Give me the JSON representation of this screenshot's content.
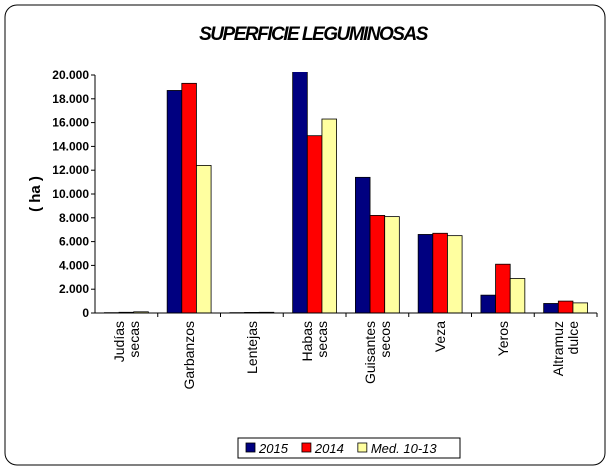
{
  "chart_data": {
    "type": "bar",
    "title": "SUPERFICIE LEGUMINOSAS",
    "y_label": "( ha )",
    "categories": [
      [
        "Judías",
        "secas"
      ],
      [
        "Garbanzos"
      ],
      [
        "Lentejas"
      ],
      [
        "Habas",
        "secas"
      ],
      [
        "Guisantes",
        "secos"
      ],
      [
        "Veza"
      ],
      [
        "Yeros"
      ],
      [
        "Altramuz",
        "dulce"
      ]
    ],
    "series": [
      {
        "name": "2015",
        "color": "#000080",
        "values": [
          30,
          18700,
          30,
          20300,
          11400,
          6600,
          1500,
          800
        ]
      },
      {
        "name": "2014",
        "color": "#ff0000",
        "values": [
          60,
          19300,
          50,
          14900,
          8200,
          6700,
          4100,
          1000
        ]
      },
      {
        "name": "Med. 10-13",
        "color": "#ffffa0",
        "values": [
          100,
          12400,
          60,
          16300,
          8100,
          6500,
          2900,
          850
        ]
      }
    ],
    "ylim": [
      0,
      20000
    ],
    "yticks": [
      0,
      {
        "value": 2000,
        "label": "2.000"
      },
      {
        "value": 4000,
        "label": "4.000"
      },
      {
        "value": 6000,
        "label": "6.000"
      },
      {
        "value": 8000,
        "label": "8.000"
      },
      {
        "value": 10000,
        "label": "10.000"
      },
      {
        "value": 12000,
        "label": "12.000"
      },
      {
        "value": 14000,
        "label": "14.000"
      },
      {
        "value": 16000,
        "label": "16.000"
      },
      {
        "value": 18000,
        "label": "18.000"
      },
      {
        "value": 20000,
        "label": "20.000"
      }
    ],
    "grid": false,
    "legend": "bottom"
  }
}
